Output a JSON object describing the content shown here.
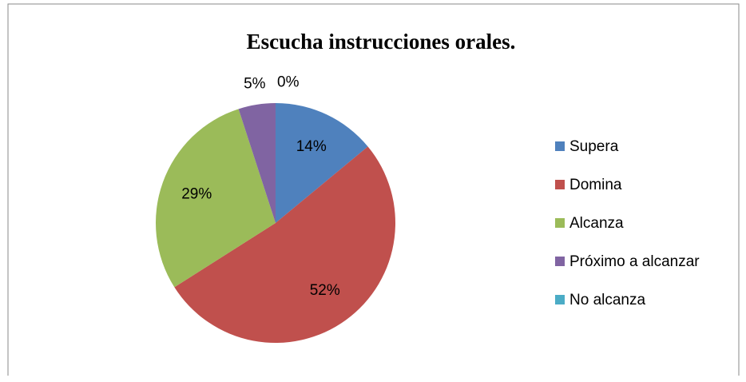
{
  "chart_data": {
    "type": "pie",
    "title": "Escucha instrucciones orales.",
    "categories": [
      "Supera",
      "Domina",
      "Alcanza",
      "Próximo a alcanzar",
      "No alcanza"
    ],
    "values": [
      14,
      52,
      29,
      5,
      0
    ],
    "value_labels": [
      "14%",
      "52%",
      "29%",
      "5%",
      "0%"
    ],
    "colors": [
      "#4f81bd",
      "#c0504d",
      "#9bbb59",
      "#8064a2",
      "#4bacc6"
    ],
    "legend": "right"
  }
}
